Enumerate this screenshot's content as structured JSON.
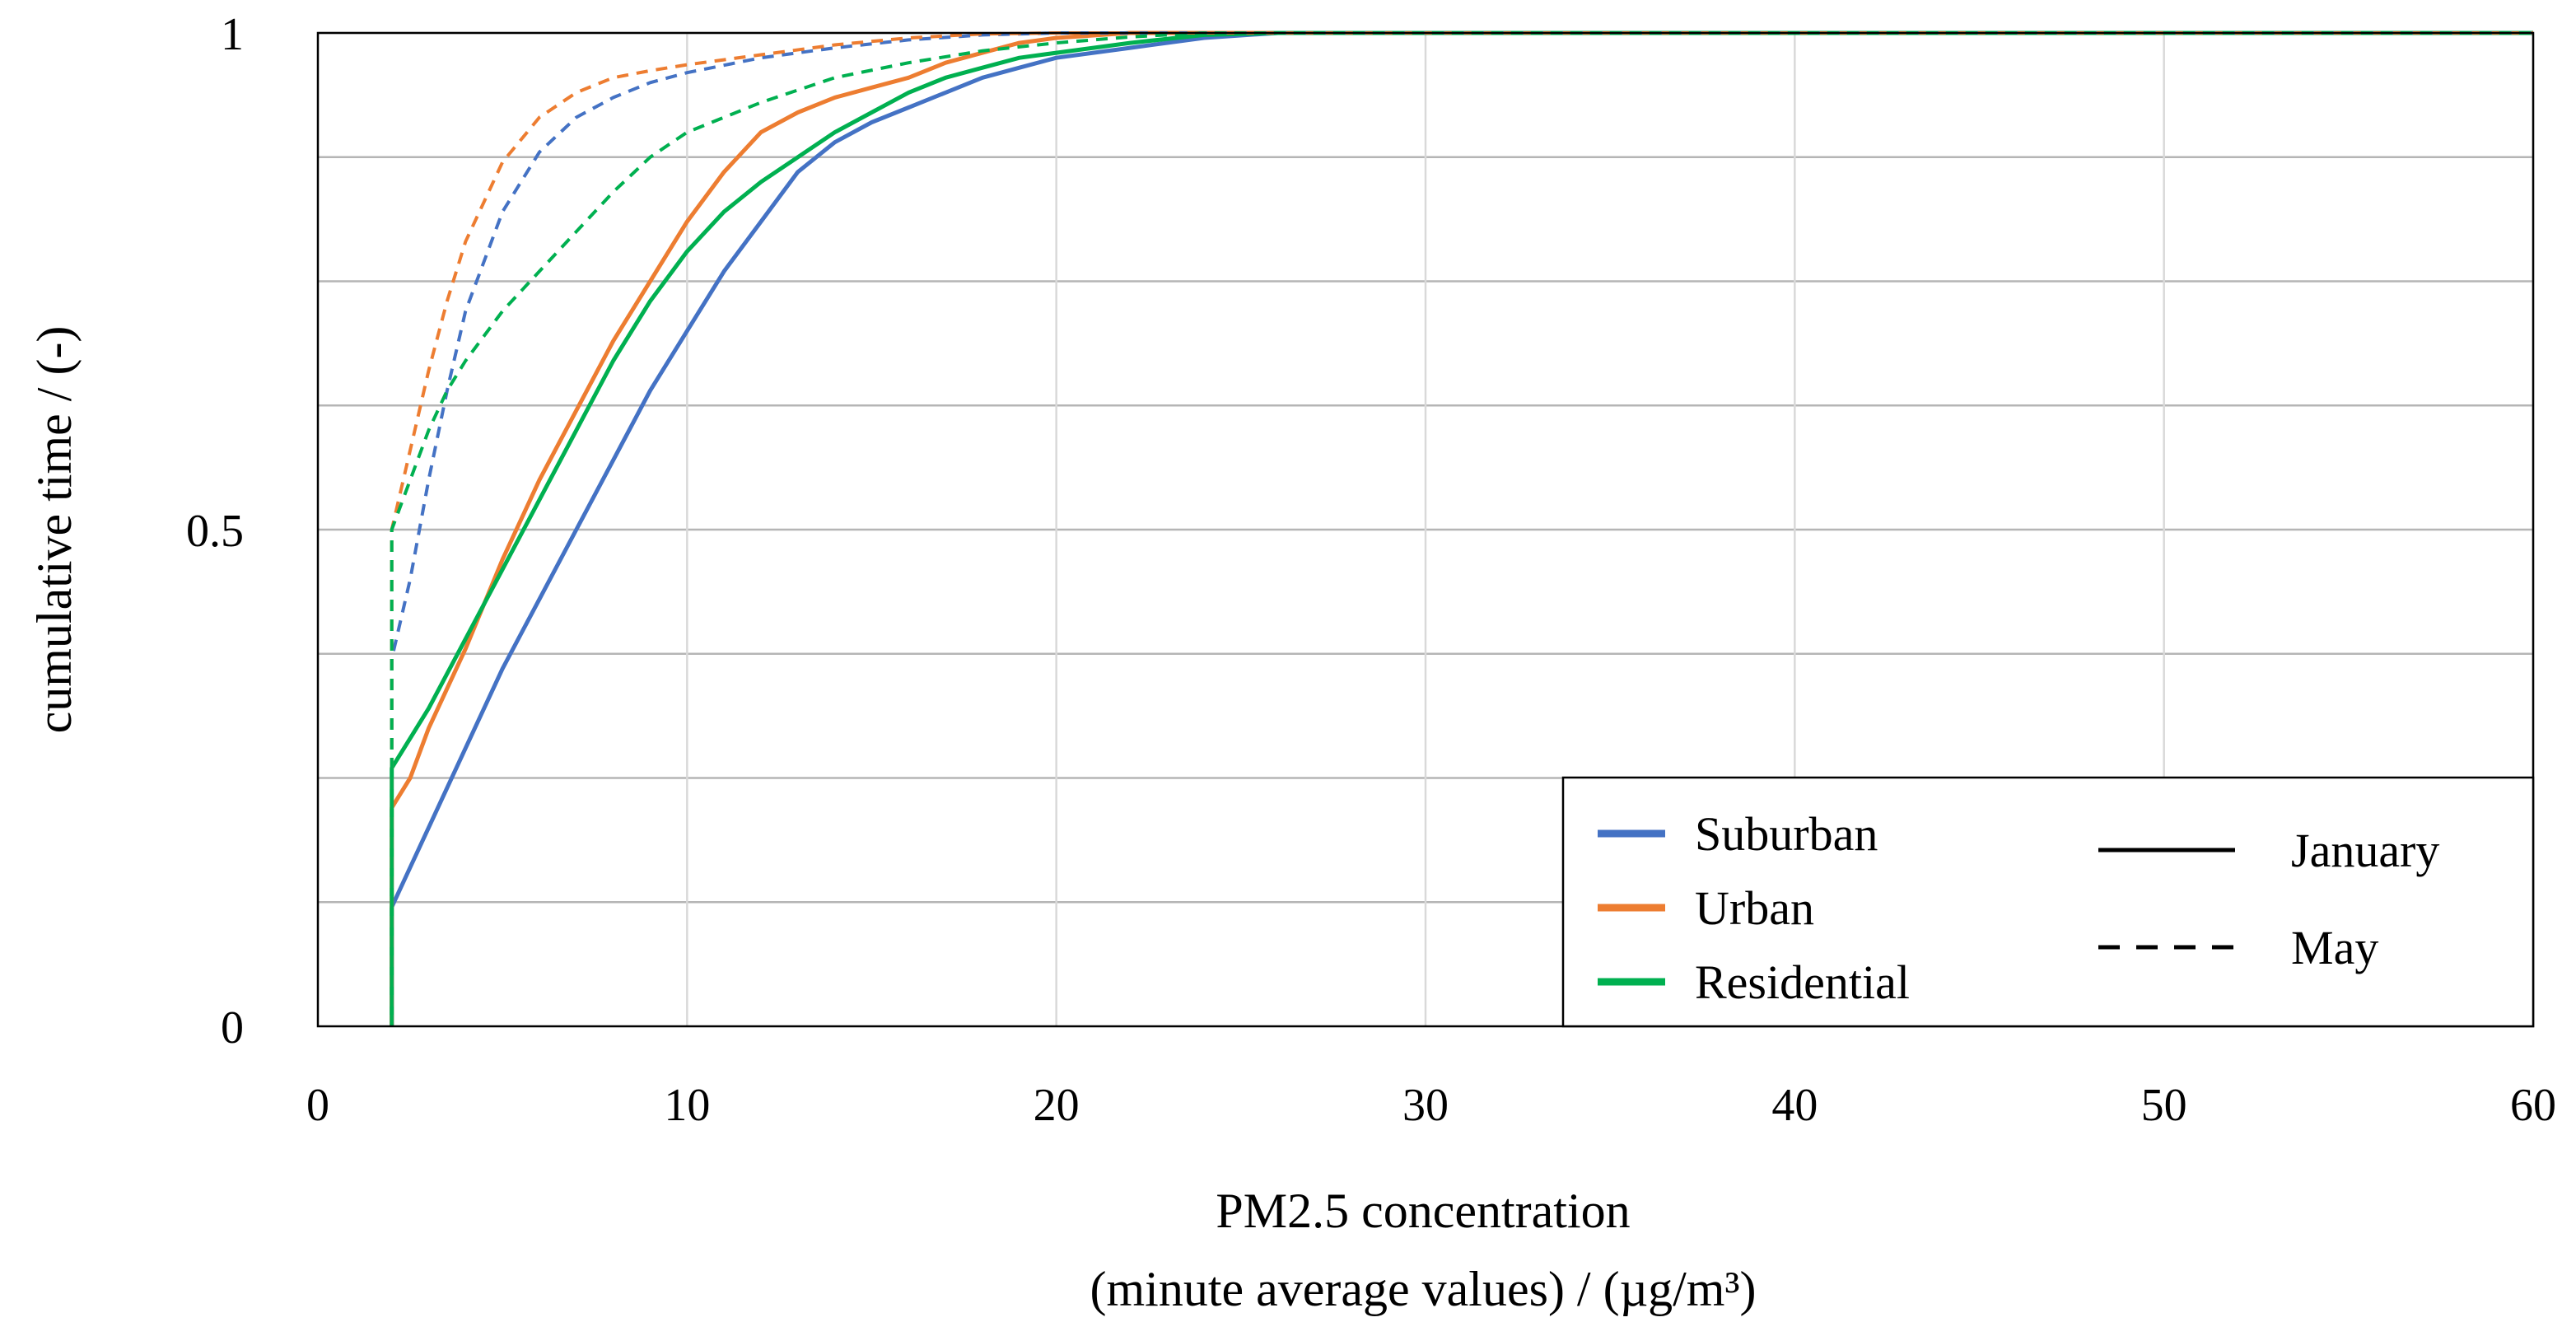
{
  "chart_data": {
    "type": "line",
    "title": "",
    "xlabel": [
      "PM2.5 concentration",
      "(minute average values) / (µg/m³)"
    ],
    "ylabel": "cumulative time / (-)",
    "xlim": [
      0,
      60
    ],
    "ylim": [
      0,
      1
    ],
    "x_ticks": [
      0,
      10,
      20,
      30,
      40,
      50,
      60
    ],
    "x_tick_labels": [
      "0",
      "10",
      "20",
      "30",
      "40",
      "50",
      "60"
    ],
    "y_ticks": [
      0,
      0.5,
      1
    ],
    "y_tick_labels": [
      "0",
      "0.5",
      "1"
    ],
    "y_gridlines": [
      0.125,
      0.25,
      0.375,
      0.5,
      0.625,
      0.75,
      0.875,
      1
    ],
    "x_gridlines": [
      10,
      20,
      30,
      40,
      50,
      60
    ],
    "legend": {
      "placement": "bottom-right",
      "locations": [
        {
          "name": "Suburban",
          "color": "#4472c4"
        },
        {
          "name": "Urban",
          "color": "#ed7d31"
        },
        {
          "name": "Residential",
          "color": "#00b050"
        }
      ],
      "months": [
        {
          "name": "January",
          "style": "solid"
        },
        {
          "name": "May",
          "style": "dashed"
        }
      ]
    },
    "series": [
      {
        "name": "Suburban - January",
        "location": "Suburban",
        "month": "January",
        "color": "#4472c4",
        "dash": false,
        "points": [
          [
            2,
            0
          ],
          [
            2,
            0.12
          ],
          [
            2.5,
            0.16
          ],
          [
            3,
            0.2
          ],
          [
            4,
            0.28
          ],
          [
            5,
            0.36
          ],
          [
            6,
            0.43
          ],
          [
            7,
            0.5
          ],
          [
            8,
            0.57
          ],
          [
            9,
            0.64
          ],
          [
            10,
            0.7
          ],
          [
            11,
            0.76
          ],
          [
            12,
            0.81
          ],
          [
            13,
            0.86
          ],
          [
            14,
            0.89
          ],
          [
            15,
            0.91
          ],
          [
            16,
            0.925
          ],
          [
            17,
            0.94
          ],
          [
            18,
            0.955
          ],
          [
            19,
            0.965
          ],
          [
            20,
            0.975
          ],
          [
            22,
            0.985
          ],
          [
            24,
            0.995
          ],
          [
            26,
            1
          ],
          [
            30,
            1
          ],
          [
            60,
            1
          ]
        ]
      },
      {
        "name": "Urban - January",
        "location": "Urban",
        "month": "January",
        "color": "#ed7d31",
        "dash": false,
        "points": [
          [
            2,
            0
          ],
          [
            2,
            0.22
          ],
          [
            2.5,
            0.25
          ],
          [
            3,
            0.3
          ],
          [
            4,
            0.38
          ],
          [
            5,
            0.47
          ],
          [
            6,
            0.55
          ],
          [
            7,
            0.62
          ],
          [
            8,
            0.69
          ],
          [
            9,
            0.75
          ],
          [
            10,
            0.81
          ],
          [
            11,
            0.86
          ],
          [
            12,
            0.9
          ],
          [
            13,
            0.92
          ],
          [
            14,
            0.935
          ],
          [
            15,
            0.945
          ],
          [
            16,
            0.955
          ],
          [
            17,
            0.97
          ],
          [
            18,
            0.98
          ],
          [
            19,
            0.99
          ],
          [
            20,
            0.995
          ],
          [
            22,
            1
          ],
          [
            30,
            1
          ],
          [
            60,
            1
          ]
        ]
      },
      {
        "name": "Residential - January",
        "location": "Residential",
        "month": "January",
        "color": "#00b050",
        "dash": false,
        "points": [
          [
            2,
            0
          ],
          [
            2,
            0.26
          ],
          [
            2.5,
            0.29
          ],
          [
            3,
            0.32
          ],
          [
            4,
            0.39
          ],
          [
            5,
            0.46
          ],
          [
            6,
            0.53
          ],
          [
            7,
            0.6
          ],
          [
            8,
            0.67
          ],
          [
            9,
            0.73
          ],
          [
            10,
            0.78
          ],
          [
            11,
            0.82
          ],
          [
            12,
            0.85
          ],
          [
            13,
            0.875
          ],
          [
            14,
            0.9
          ],
          [
            15,
            0.92
          ],
          [
            16,
            0.94
          ],
          [
            17,
            0.955
          ],
          [
            18,
            0.965
          ],
          [
            19,
            0.975
          ],
          [
            20,
            0.98
          ],
          [
            22,
            0.99
          ],
          [
            24,
            0.998
          ],
          [
            26,
            1
          ],
          [
            30,
            1
          ],
          [
            60,
            1
          ]
        ]
      },
      {
        "name": "Suburban - May",
        "location": "Suburban",
        "month": "May",
        "color": "#4472c4",
        "dash": true,
        "points": [
          [
            2,
            0
          ],
          [
            2,
            0.37
          ],
          [
            2.5,
            0.45
          ],
          [
            3,
            0.55
          ],
          [
            3.5,
            0.64
          ],
          [
            4,
            0.72
          ],
          [
            5,
            0.82
          ],
          [
            6,
            0.88
          ],
          [
            7,
            0.915
          ],
          [
            8,
            0.935
          ],
          [
            9,
            0.95
          ],
          [
            10,
            0.96
          ],
          [
            12,
            0.975
          ],
          [
            14,
            0.985
          ],
          [
            16,
            0.993
          ],
          [
            18,
            0.998
          ],
          [
            20,
            1
          ],
          [
            30,
            1
          ],
          [
            60,
            1
          ]
        ]
      },
      {
        "name": "Urban - May",
        "location": "Urban",
        "month": "May",
        "color": "#ed7d31",
        "dash": true,
        "points": [
          [
            2,
            0
          ],
          [
            2,
            0.5
          ],
          [
            2.5,
            0.58
          ],
          [
            3,
            0.66
          ],
          [
            3.5,
            0.73
          ],
          [
            4,
            0.79
          ],
          [
            5,
            0.87
          ],
          [
            6,
            0.915
          ],
          [
            7,
            0.94
          ],
          [
            8,
            0.955
          ],
          [
            9,
            0.962
          ],
          [
            10,
            0.968
          ],
          [
            12,
            0.978
          ],
          [
            14,
            0.988
          ],
          [
            16,
            0.995
          ],
          [
            18,
            0.999
          ],
          [
            20,
            1
          ],
          [
            30,
            1
          ],
          [
            60,
            1
          ]
        ]
      },
      {
        "name": "Residential - May",
        "location": "Residential",
        "month": "May",
        "color": "#00b050",
        "dash": true,
        "points": [
          [
            2,
            0
          ],
          [
            2,
            0.5
          ],
          [
            2.5,
            0.55
          ],
          [
            3,
            0.6
          ],
          [
            3.5,
            0.64
          ],
          [
            4,
            0.67
          ],
          [
            5,
            0.72
          ],
          [
            6,
            0.76
          ],
          [
            7,
            0.8
          ],
          [
            8,
            0.84
          ],
          [
            9,
            0.875
          ],
          [
            10,
            0.9
          ],
          [
            11,
            0.915
          ],
          [
            12,
            0.93
          ],
          [
            14,
            0.955
          ],
          [
            16,
            0.97
          ],
          [
            18,
            0.982
          ],
          [
            20,
            0.99
          ],
          [
            22,
            0.996
          ],
          [
            24,
            1
          ],
          [
            30,
            1
          ],
          [
            60,
            1
          ]
        ]
      }
    ]
  }
}
